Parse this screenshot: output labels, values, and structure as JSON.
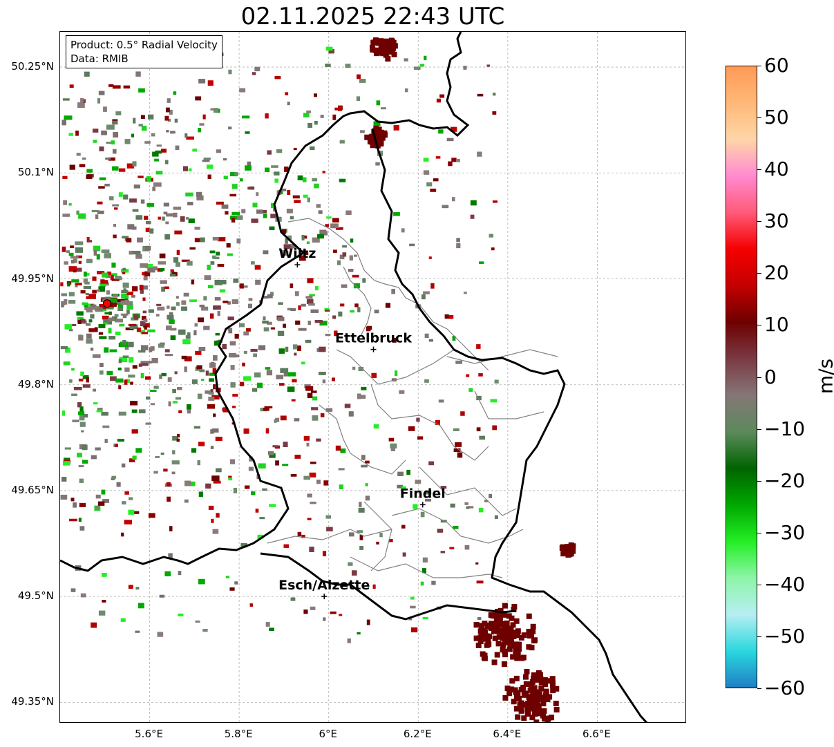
{
  "title": "02.11.2025 22:43 UTC",
  "info": {
    "product": "Product: 0.5° Radial Velocity",
    "data_source": "Data: RMIB"
  },
  "lat_labels": [
    "50.25°N",
    "50.1°N",
    "49.95°N",
    "49.8°N",
    "49.65°N",
    "49.5°N",
    "49.35°N"
  ],
  "lon_labels": [
    "5.6°E",
    "5.8°E",
    "6°E",
    "6.2°E",
    "6.4°E",
    "6.6°E"
  ],
  "cities": [
    {
      "name": "Wiltz",
      "lon": 5.93,
      "lat": 49.97
    },
    {
      "name": "Ettelbruck",
      "lon": 6.1,
      "lat": 49.85
    },
    {
      "name": "Findel",
      "lon": 6.21,
      "lat": 49.63
    },
    {
      "name": "Esch/Alzette",
      "lon": 5.99,
      "lat": 49.5
    }
  ],
  "radar_site": {
    "lon": 5.505,
    "lat": 49.915,
    "color": "#ff0000"
  },
  "colorbar": {
    "label": "m/s",
    "ticks": [
      "60",
      "50",
      "40",
      "30",
      "20",
      "10",
      "0",
      "−10",
      "−20",
      "−30",
      "−40",
      "−50",
      "−60"
    ],
    "min": -60,
    "max": 60,
    "stops": [
      "#1f7fc4",
      "#2ad8de",
      "#b6eef2",
      "#8ef5a8",
      "#24ee24",
      "#00a800",
      "#006400",
      "#5c8a5c",
      "#857676",
      "#7a3a44",
      "#6e0000",
      "#c40000",
      "#f50000",
      "#ff5a78",
      "#ff8ad0",
      "#ffd6a8",
      "#ffb878",
      "#ff9a58"
    ]
  },
  "map_extent": {
    "lon_min": 5.4,
    "lon_max": 6.8,
    "lat_min": 49.32,
    "lat_max": 50.3
  }
}
